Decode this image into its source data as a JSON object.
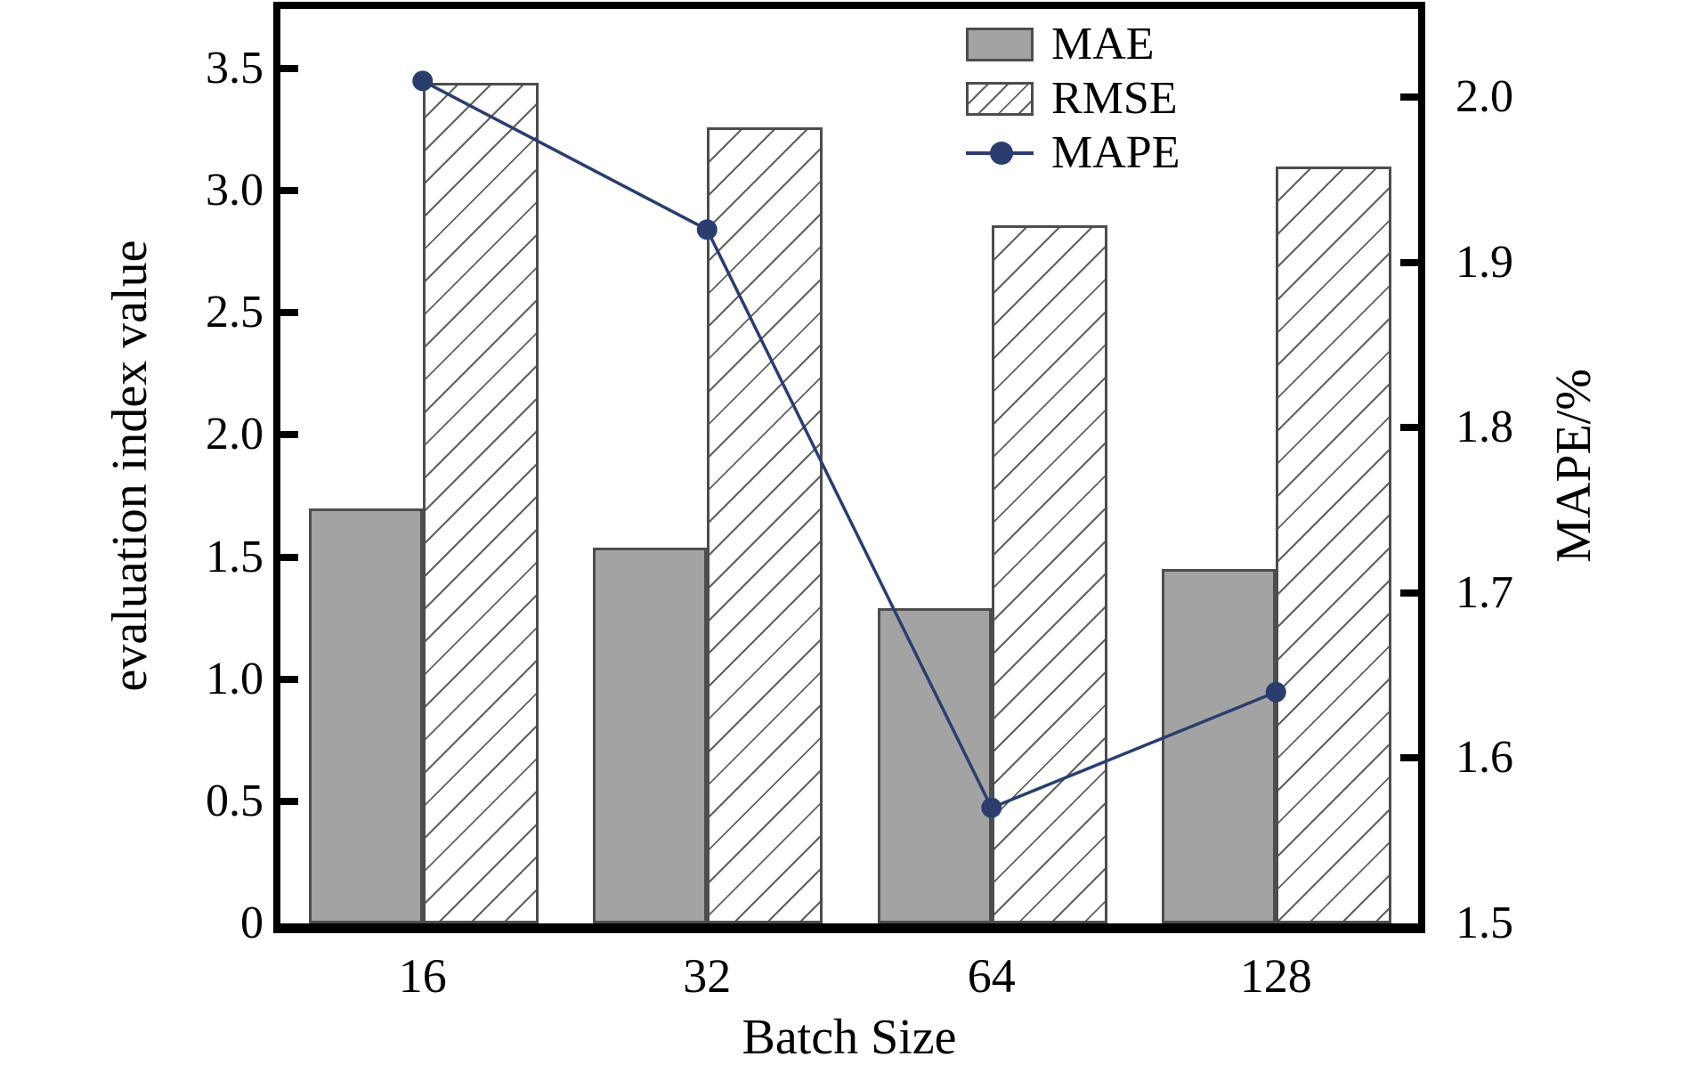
{
  "chart_data": {
    "type": "bar",
    "subtype": "grouped-bars-with-line-on-secondary-axis",
    "categories": [
      "16",
      "32",
      "64",
      "128"
    ],
    "series": [
      {
        "name": "MAE",
        "type": "bar",
        "axis": "left",
        "values": [
          1.7,
          1.54,
          1.29,
          1.45
        ]
      },
      {
        "name": "RMSE",
        "type": "bar",
        "axis": "left",
        "values": [
          3.44,
          3.26,
          2.86,
          3.1
        ]
      },
      {
        "name": "MAPE",
        "type": "line",
        "axis": "right",
        "values": [
          2.01,
          1.92,
          1.57,
          1.64
        ]
      }
    ],
    "xlabel": "Batch Size",
    "ylabel_left": "evaluation index value",
    "ylabel_right": "MAPE/%",
    "left_ticks": [
      "0",
      "0.5",
      "1.0",
      "1.5",
      "2.0",
      "2.5",
      "3.0",
      "3.5"
    ],
    "left_tick_values": [
      0,
      0.5,
      1.0,
      1.5,
      2.0,
      2.5,
      3.0,
      3.5
    ],
    "right_ticks": [
      "1.5",
      "1.6",
      "1.7",
      "1.8",
      "1.9",
      "2.0"
    ],
    "right_tick_values": [
      1.5,
      1.6,
      1.7,
      1.8,
      1.9,
      2.0
    ],
    "ylim_left": [
      0,
      3.744
    ],
    "ylim_right": [
      1.5,
      2.0536
    ],
    "grid": false,
    "legend_position": "upper-center-right",
    "colors": {
      "bar_fill": "#a3a3a3",
      "bar_edge": "#4d4d4d",
      "hatch": "#606060",
      "line": "#2a3e6e",
      "axis": "#000000",
      "background": "#ffffff"
    }
  }
}
